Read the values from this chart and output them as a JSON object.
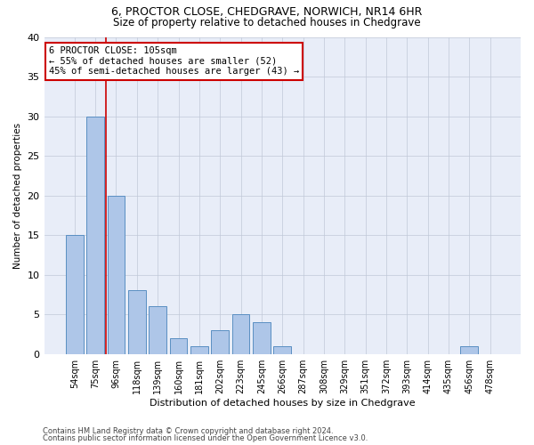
{
  "title1": "6, PROCTOR CLOSE, CHEDGRAVE, NORWICH, NR14 6HR",
  "title2": "Size of property relative to detached houses in Chedgrave",
  "xlabel": "Distribution of detached houses by size in Chedgrave",
  "ylabel": "Number of detached properties",
  "footnote1": "Contains HM Land Registry data © Crown copyright and database right 2024.",
  "footnote2": "Contains public sector information licensed under the Open Government Licence v3.0.",
  "bin_labels": [
    "54sqm",
    "75sqm",
    "96sqm",
    "118sqm",
    "139sqm",
    "160sqm",
    "181sqm",
    "202sqm",
    "223sqm",
    "245sqm",
    "266sqm",
    "287sqm",
    "308sqm",
    "329sqm",
    "351sqm",
    "372sqm",
    "393sqm",
    "414sqm",
    "435sqm",
    "456sqm",
    "478sqm"
  ],
  "bar_values": [
    15,
    30,
    20,
    8,
    6,
    2,
    1,
    3,
    5,
    4,
    1,
    0,
    0,
    0,
    0,
    0,
    0,
    0,
    0,
    1,
    0
  ],
  "bar_color": "#aec6e8",
  "bar_edge_color": "#5a8fc2",
  "annotation_line1": "6 PROCTOR CLOSE: 105sqm",
  "annotation_line2": "← 55% of detached houses are smaller (52)",
  "annotation_line3": "45% of semi-detached houses are larger (43) →",
  "vline_color": "#cc0000",
  "box_color": "#cc0000",
  "ylim": [
    0,
    40
  ],
  "yticks": [
    0,
    5,
    10,
    15,
    20,
    25,
    30,
    35,
    40
  ],
  "plot_bg_color": "#e8edf8",
  "fig_bg_color": "#ffffff",
  "grid_color": "#c0c8d8",
  "title1_fontsize": 9.0,
  "title2_fontsize": 8.5,
  "xlabel_fontsize": 8.0,
  "ylabel_fontsize": 7.5,
  "xtick_fontsize": 7.0,
  "ytick_fontsize": 8.0,
  "footnote_fontsize": 6.0,
  "annot_fontsize": 7.5
}
